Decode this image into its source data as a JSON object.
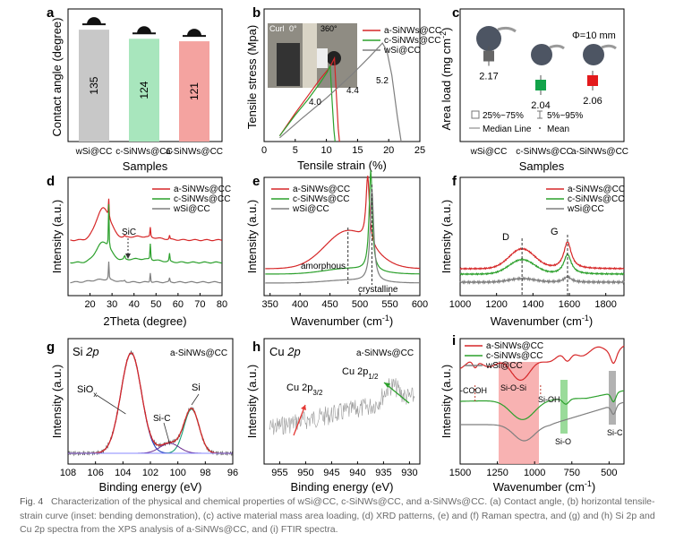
{
  "colors": {
    "red": "#d62728",
    "green": "#2ca02c",
    "gray": "#7f7f7f",
    "bar_gray": "#c8c8c8",
    "bar_green": "#a8e6bd",
    "bar_red": "#f4a3a0"
  },
  "caption": {
    "label": "Fig. 4",
    "text": "Characterization of the physical and chemical properties of wSi@CC, c-SiNWs@CC, and a-SiNWs@CC. (a) Contact angle, (b) horizontal tensile-strain curve (inset: bending demonstration), (c) active material mass area loading, (d) XRD patterns, (e) and (f) Raman spectra, and (g) and (h) Si 2p and Cu 2p spectra from the XPS analysis of a-SiNWs@CC, and (i) FTIR spectra."
  },
  "chart_data": [
    {
      "panel": "a",
      "type": "bar",
      "ylabel": "Contact angle (degree)",
      "xlabel": "Samples",
      "categories": [
        "wSi@CC",
        "c-SiNWs@CC",
        "a-SiNWs@CC"
      ],
      "values": [
        135,
        124,
        121
      ],
      "ylim": [
        0,
        160
      ]
    },
    {
      "panel": "b",
      "type": "line",
      "xlabel": "Tensile strain (%)",
      "ylabel": "Tensile stress (Mpa)",
      "xlim": [
        0,
        25
      ],
      "ylim": [
        0,
        7
      ],
      "xticks": [
        0,
        5,
        10,
        15,
        20,
        25
      ],
      "series": [
        {
          "name": "a-SiNWs@CC",
          "color": "red",
          "peak": 4.4,
          "x": [
            2.5,
            5,
            7,
            9,
            10.5,
            11.3,
            11.6,
            11.9,
            12.1
          ],
          "y": [
            0.3,
            1.5,
            2.4,
            3.3,
            3.9,
            4.4,
            2.5,
            0.7,
            0
          ]
        },
        {
          "name": "c-SiNWs@CC",
          "color": "green",
          "peak": 4.0,
          "x": [
            2.5,
            5,
            7,
            9,
            10.2,
            10.6,
            10.9,
            11.2,
            11.4
          ],
          "y": [
            0.3,
            1.4,
            2.2,
            3.1,
            3.7,
            4.0,
            2.2,
            0.6,
            0
          ]
        },
        {
          "name": "wSi@CC",
          "color": "gray",
          "peak": 5.2,
          "x": [
            2.5,
            6,
            10,
            14,
            17,
            19,
            19.7,
            20.5,
            21.4,
            22
          ],
          "y": [
            0.2,
            1.2,
            2.3,
            3.5,
            4.5,
            5.2,
            4.8,
            3.5,
            1.3,
            0
          ]
        }
      ],
      "labels": {
        "peak_a": "4.4",
        "peak_c": "4.0",
        "peak_w": "5.2",
        "curl": "Curl",
        "deg0": "0°",
        "deg360": "360°"
      }
    },
    {
      "panel": "c",
      "type": "box",
      "ylabel": "Area load (mg cm",
      "ylabel_sup": "-2",
      "ylabel_end": ")",
      "xlabel": "Samples",
      "categories": [
        "wSi@CC",
        "c-SiNWs@CC",
        "a-SiNWs@CC"
      ],
      "values": [
        2.17,
        2.04,
        2.06
      ],
      "value_labels": [
        "2.17",
        "2.04",
        "2.06"
      ],
      "ylim": [
        1.9,
        2.3
      ],
      "diameter": "Φ=10 mm",
      "legend": {
        "box": "25%~75%",
        "range": "5%~95%",
        "median": "Median Line",
        "mean": "Mean"
      }
    },
    {
      "panel": "d",
      "type": "line",
      "xlabel": "2Theta (degree)",
      "ylabel": "Intensity (a.u.)",
      "xlim": [
        10,
        80
      ],
      "xticks": [
        20,
        30,
        40,
        50,
        60,
        70,
        80
      ],
      "annotation": "SiC",
      "series": [
        {
          "name": "a-SiNWs@CC",
          "color": "red"
        },
        {
          "name": "c-SiNWs@CC",
          "color": "green"
        },
        {
          "name": "wSi@CC",
          "color": "gray"
        }
      ]
    },
    {
      "panel": "e",
      "type": "line",
      "xlabel": "Wavenumber (cm",
      "xlabel_sup": "-1",
      "xlabel_end": ")",
      "ylabel": "Intensity (a.u.)",
      "xlim": [
        340,
        600
      ],
      "xticks": [
        350,
        400,
        450,
        500,
        550,
        600
      ],
      "annotations": [
        "amorphous",
        "crystalline"
      ],
      "series": [
        {
          "name": "a-SiNWs@CC",
          "color": "red"
        },
        {
          "name": "c-SiNWs@CC",
          "color": "green"
        },
        {
          "name": "wSi@CC",
          "color": "gray"
        }
      ]
    },
    {
      "panel": "f",
      "type": "line",
      "xlabel": "Wavenumber (cm",
      "xlabel_sup": "-1",
      "xlabel_end": ")",
      "ylabel": "Intensity (a.u.)",
      "xlim": [
        1000,
        1900
      ],
      "xticks": [
        1000,
        1200,
        1400,
        1600,
        1800
      ],
      "annotations": [
        "D",
        "G"
      ],
      "series": [
        {
          "name": "a-SiNWs@CC",
          "color": "red"
        },
        {
          "name": "c-SiNWs@CC",
          "color": "green"
        },
        {
          "name": "wSi@CC",
          "color": "gray"
        }
      ]
    },
    {
      "panel": "g",
      "type": "line",
      "title": "Si ",
      "title_em": "2p",
      "sample": "a-SiNWs@CC",
      "xlabel": "Binding energy (eV)",
      "ylabel": "Intensity (a.u.)",
      "xlim": [
        108,
        96
      ],
      "xticks": [
        108,
        106,
        104,
        102,
        100,
        98,
        96
      ],
      "annotations": {
        "siox": "SiO",
        "siox_sub": "x",
        "sic": "Si-C",
        "si": "Si"
      },
      "peaks": [
        {
          "name": "SiOx",
          "center": 103.4,
          "height": 1.0
        },
        {
          "name": "Si",
          "center": 99.0,
          "height": 0.44
        },
        {
          "name": "Si-C",
          "center": 100.6,
          "height": 0.1
        }
      ]
    },
    {
      "panel": "h",
      "type": "line",
      "title": "Cu ",
      "title_em": "2p",
      "sample": "a-SiNWs@CC",
      "xlabel": "Binding energy (eV)",
      "ylabel": "Intensity (a.u.)",
      "xlim": [
        958,
        928
      ],
      "xticks": [
        955,
        950,
        945,
        940,
        935,
        930
      ],
      "annotations": {
        "cu32": "Cu 2p",
        "cu32_sub": "3/2",
        "cu12": "Cu 2p",
        "cu12_sub": "1/2"
      }
    },
    {
      "panel": "i",
      "type": "line",
      "xlabel": "Wavenumber (cm",
      "xlabel_sup": "-1",
      "xlabel_end": ")",
      "ylabel": "Intensity (a.u.)",
      "xlim": [
        1500,
        400
      ],
      "xticks": [
        1500,
        1250,
        1000,
        750,
        500
      ],
      "annotations": {
        "cooh": "-COOH",
        "sios": "Si-O-Si",
        "sioh": "Si-OH",
        "sio": "Si-O",
        "sic": "Si-C"
      },
      "series": [
        {
          "name": "a-SiNWs@CC",
          "color": "red"
        },
        {
          "name": "c-SiNWs@CC",
          "color": "green"
        },
        {
          "name": "wSi@CC",
          "color": "gray"
        }
      ]
    }
  ],
  "panel_letters": [
    "a",
    "b",
    "c",
    "d",
    "e",
    "f",
    "g",
    "h",
    "i"
  ]
}
